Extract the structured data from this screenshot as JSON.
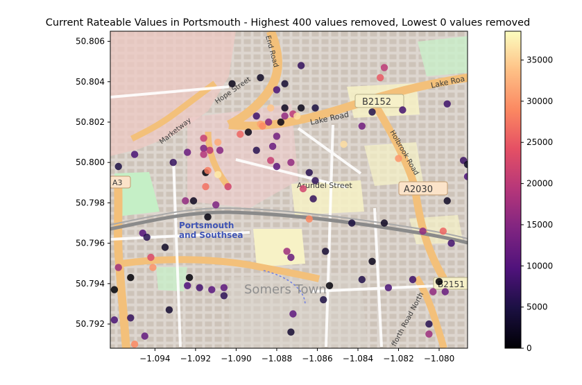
{
  "chart_data": {
    "type": "scatter",
    "title": "Current Rateable Values in Portsmouth - Highest 400 values removed, Lowest  0 values removed",
    "xlabel": "",
    "ylabel": "",
    "xlim": [
      -1.0962,
      -1.0786
    ],
    "ylim": [
      50.7908,
      50.8065
    ],
    "x_ticks": [
      -1.094,
      -1.092,
      -1.09,
      -1.088,
      -1.086,
      -1.084,
      -1.082,
      -1.08
    ],
    "x_tick_labels": [
      "−1.094",
      "−1.092",
      "−1.090",
      "−1.088",
      "−1.086",
      "−1.084",
      "−1.082",
      "−1.080"
    ],
    "y_ticks": [
      50.792,
      50.794,
      50.796,
      50.798,
      50.8,
      50.802,
      50.804,
      50.806
    ],
    "y_tick_labels": [
      "50.792",
      "50.794",
      "50.796",
      "50.798",
      "50.800",
      "50.802",
      "50.804",
      "50.806"
    ],
    "colorbar": {
      "colormap": "magma",
      "range": [
        0,
        38500
      ],
      "ticks": [
        0,
        5000,
        10000,
        15000,
        20000,
        25000,
        30000,
        35000
      ],
      "tick_labels": [
        "0",
        "5000",
        "10000",
        "15000",
        "20000",
        "25000",
        "30000",
        "35000"
      ]
    },
    "grid": false,
    "map_labels": [
      "B2152",
      "Lake Road",
      "Lake Roa",
      "A2030",
      "Holbrook Road",
      "Arundel Street",
      "A3",
      "Portsmouth",
      "and Southsea",
      "Somers Town",
      "B2151",
      "Hope Street",
      "Marketway",
      "End Road",
      "fforth Road North"
    ],
    "points": [
      {
        "x": -1.0902,
        "y": 50.8039,
        "v": 1500
      },
      {
        "x": -1.0888,
        "y": 50.8042,
        "v": 2500
      },
      {
        "x": -1.0876,
        "y": 50.8039,
        "v": 3500
      },
      {
        "x": -1.0868,
        "y": 50.8048,
        "v": 7000
      },
      {
        "x": -1.088,
        "y": 50.8036,
        "v": 9000
      },
      {
        "x": -1.0883,
        "y": 50.8027,
        "v": 34000
      },
      {
        "x": -1.0876,
        "y": 50.8027,
        "v": 2000
      },
      {
        "x": -1.0872,
        "y": 50.8024,
        "v": 20000
      },
      {
        "x": -1.087,
        "y": 50.8023,
        "v": 36000
      },
      {
        "x": -1.0888,
        "y": 50.8019,
        "v": 31000
      },
      {
        "x": -1.0878,
        "y": 50.802,
        "v": 1200
      },
      {
        "x": -1.0876,
        "y": 50.8023,
        "v": 16000
      },
      {
        "x": -1.0887,
        "y": 50.8018,
        "v": 29000
      },
      {
        "x": -1.0884,
        "y": 50.802,
        "v": 15000
      },
      {
        "x": -1.089,
        "y": 50.8023,
        "v": 8000
      },
      {
        "x": -1.0894,
        "y": 50.8015,
        "v": 1500
      },
      {
        "x": -1.0898,
        "y": 50.8014,
        "v": 26000
      },
      {
        "x": -1.089,
        "y": 50.8006,
        "v": 6000
      },
      {
        "x": -1.0882,
        "y": 50.8008,
        "v": 12000
      },
      {
        "x": -1.088,
        "y": 50.8013,
        "v": 13000
      },
      {
        "x": -1.0909,
        "y": 50.801,
        "v": 32000
      },
      {
        "x": -1.0916,
        "y": 50.8012,
        "v": 21000
      },
      {
        "x": -1.0913,
        "y": 50.8006,
        "v": 20000
      },
      {
        "x": -1.0916,
        "y": 50.8007,
        "v": 14000
      },
      {
        "x": -1.0924,
        "y": 50.8005,
        "v": 12000
      },
      {
        "x": -1.0908,
        "y": 50.8006,
        "v": 15000
      },
      {
        "x": -1.0916,
        "y": 50.8004,
        "v": 19000
      },
      {
        "x": -1.0931,
        "y": 50.8,
        "v": 7000
      },
      {
        "x": -1.095,
        "y": 50.8004,
        "v": 9000
      },
      {
        "x": -1.0958,
        "y": 50.7998,
        "v": 5000
      },
      {
        "x": -1.0883,
        "y": 50.8001,
        "v": 21000
      },
      {
        "x": -1.0873,
        "y": 50.8,
        "v": 16000
      },
      {
        "x": -1.088,
        "y": 50.7998,
        "v": 11000
      },
      {
        "x": -1.0915,
        "y": 50.7995,
        "v": 400
      },
      {
        "x": -1.0914,
        "y": 50.7996,
        "v": 28000
      },
      {
        "x": -1.0909,
        "y": 50.7994,
        "v": 37000
      },
      {
        "x": -1.0915,
        "y": 50.7988,
        "v": 27000
      },
      {
        "x": -1.0904,
        "y": 50.7988,
        "v": 22000
      },
      {
        "x": -1.0921,
        "y": 50.7981,
        "v": 2000
      },
      {
        "x": -1.0925,
        "y": 50.7981,
        "v": 16000
      },
      {
        "x": -1.091,
        "y": 50.7979,
        "v": 14000
      },
      {
        "x": -1.0914,
        "y": 50.7973,
        "v": 1000
      },
      {
        "x": -1.0864,
        "y": 50.7995,
        "v": 6000
      },
      {
        "x": -1.0861,
        "y": 50.7991,
        "v": 6500
      },
      {
        "x": -1.0862,
        "y": 50.7982,
        "v": 7000
      },
      {
        "x": -1.0867,
        "y": 50.7987,
        "v": 22000
      },
      {
        "x": -1.0864,
        "y": 50.7972,
        "v": 29000
      },
      {
        "x": -1.0868,
        "y": 50.8027,
        "v": 1500
      },
      {
        "x": -1.0861,
        "y": 50.8027,
        "v": 4500
      },
      {
        "x": -1.0833,
        "y": 50.8025,
        "v": 5500
      },
      {
        "x": -1.0847,
        "y": 50.8009,
        "v": 36000
      },
      {
        "x": -1.0838,
        "y": 50.8018,
        "v": 13000
      },
      {
        "x": -1.0827,
        "y": 50.8047,
        "v": 20000
      },
      {
        "x": -1.0829,
        "y": 50.8042,
        "v": 25000
      },
      {
        "x": -1.0818,
        "y": 50.8026,
        "v": 8500
      },
      {
        "x": -1.0796,
        "y": 50.8029,
        "v": 8000
      },
      {
        "x": -1.082,
        "y": 50.8002,
        "v": 30000
      },
      {
        "x": -1.0788,
        "y": 50.8001,
        "v": 7500
      },
      {
        "x": -1.0786,
        "y": 50.7999,
        "v": 2500
      },
      {
        "x": -1.0786,
        "y": 50.7993,
        "v": 9500
      },
      {
        "x": -1.0796,
        "y": 50.7981,
        "v": 2500
      },
      {
        "x": -1.0827,
        "y": 50.797,
        "v": 2500
      },
      {
        "x": -1.0843,
        "y": 50.797,
        "v": 4500
      },
      {
        "x": -1.0808,
        "y": 50.7966,
        "v": 16000
      },
      {
        "x": -1.0798,
        "y": 50.7966,
        "v": 26000
      },
      {
        "x": -1.0794,
        "y": 50.796,
        "v": 8500
      },
      {
        "x": -1.0856,
        "y": 50.7956,
        "v": 3500
      },
      {
        "x": -1.0875,
        "y": 50.7956,
        "v": 17000
      },
      {
        "x": -1.0873,
        "y": 50.7953,
        "v": 12000
      },
      {
        "x": -1.0833,
        "y": 50.7951,
        "v": 1800
      },
      {
        "x": -1.0838,
        "y": 50.7942,
        "v": 5500
      },
      {
        "x": -1.0825,
        "y": 50.7938,
        "v": 9000
      },
      {
        "x": -1.0813,
        "y": 50.7942,
        "v": 8000
      },
      {
        "x": -1.08,
        "y": 50.7941,
        "v": 300
      },
      {
        "x": -1.0803,
        "y": 50.7936,
        "v": 16000
      },
      {
        "x": -1.0797,
        "y": 50.7936,
        "v": 12000
      },
      {
        "x": -1.0854,
        "y": 50.7939,
        "v": 500
      },
      {
        "x": -1.0857,
        "y": 50.7932,
        "v": 5000
      },
      {
        "x": -1.0872,
        "y": 50.7925,
        "v": 11000
      },
      {
        "x": -1.0873,
        "y": 50.7916,
        "v": 3500
      },
      {
        "x": -1.0805,
        "y": 50.792,
        "v": 6000
      },
      {
        "x": -1.0805,
        "y": 50.7915,
        "v": 17000
      },
      {
        "x": -1.0946,
        "y": 50.7965,
        "v": 10000
      },
      {
        "x": -1.0944,
        "y": 50.7963,
        "v": 6000
      },
      {
        "x": -1.0942,
        "y": 50.7953,
        "v": 23000
      },
      {
        "x": -1.0941,
        "y": 50.7948,
        "v": 30000
      },
      {
        "x": -1.0958,
        "y": 50.7948,
        "v": 17000
      },
      {
        "x": -1.0935,
        "y": 50.7958,
        "v": 2500
      },
      {
        "x": -1.0952,
        "y": 50.7943,
        "v": 300
      },
      {
        "x": -1.096,
        "y": 50.7937,
        "v": 200
      },
      {
        "x": -1.0924,
        "y": 50.7939,
        "v": 9500
      },
      {
        "x": -1.0923,
        "y": 50.7943,
        "v": 500
      },
      {
        "x": -1.0918,
        "y": 50.7938,
        "v": 8500
      },
      {
        "x": -1.0912,
        "y": 50.7937,
        "v": 10500
      },
      {
        "x": -1.0906,
        "y": 50.7938,
        "v": 11000
      },
      {
        "x": -1.0906,
        "y": 50.7934,
        "v": 6500
      },
      {
        "x": -1.0933,
        "y": 50.7927,
        "v": 3500
      },
      {
        "x": -1.096,
        "y": 50.7922,
        "v": 9000
      },
      {
        "x": -1.0952,
        "y": 50.7923,
        "v": 7000
      },
      {
        "x": -1.0945,
        "y": 50.7914,
        "v": 11500
      },
      {
        "x": -1.095,
        "y": 50.791,
        "v": 29000
      }
    ]
  }
}
